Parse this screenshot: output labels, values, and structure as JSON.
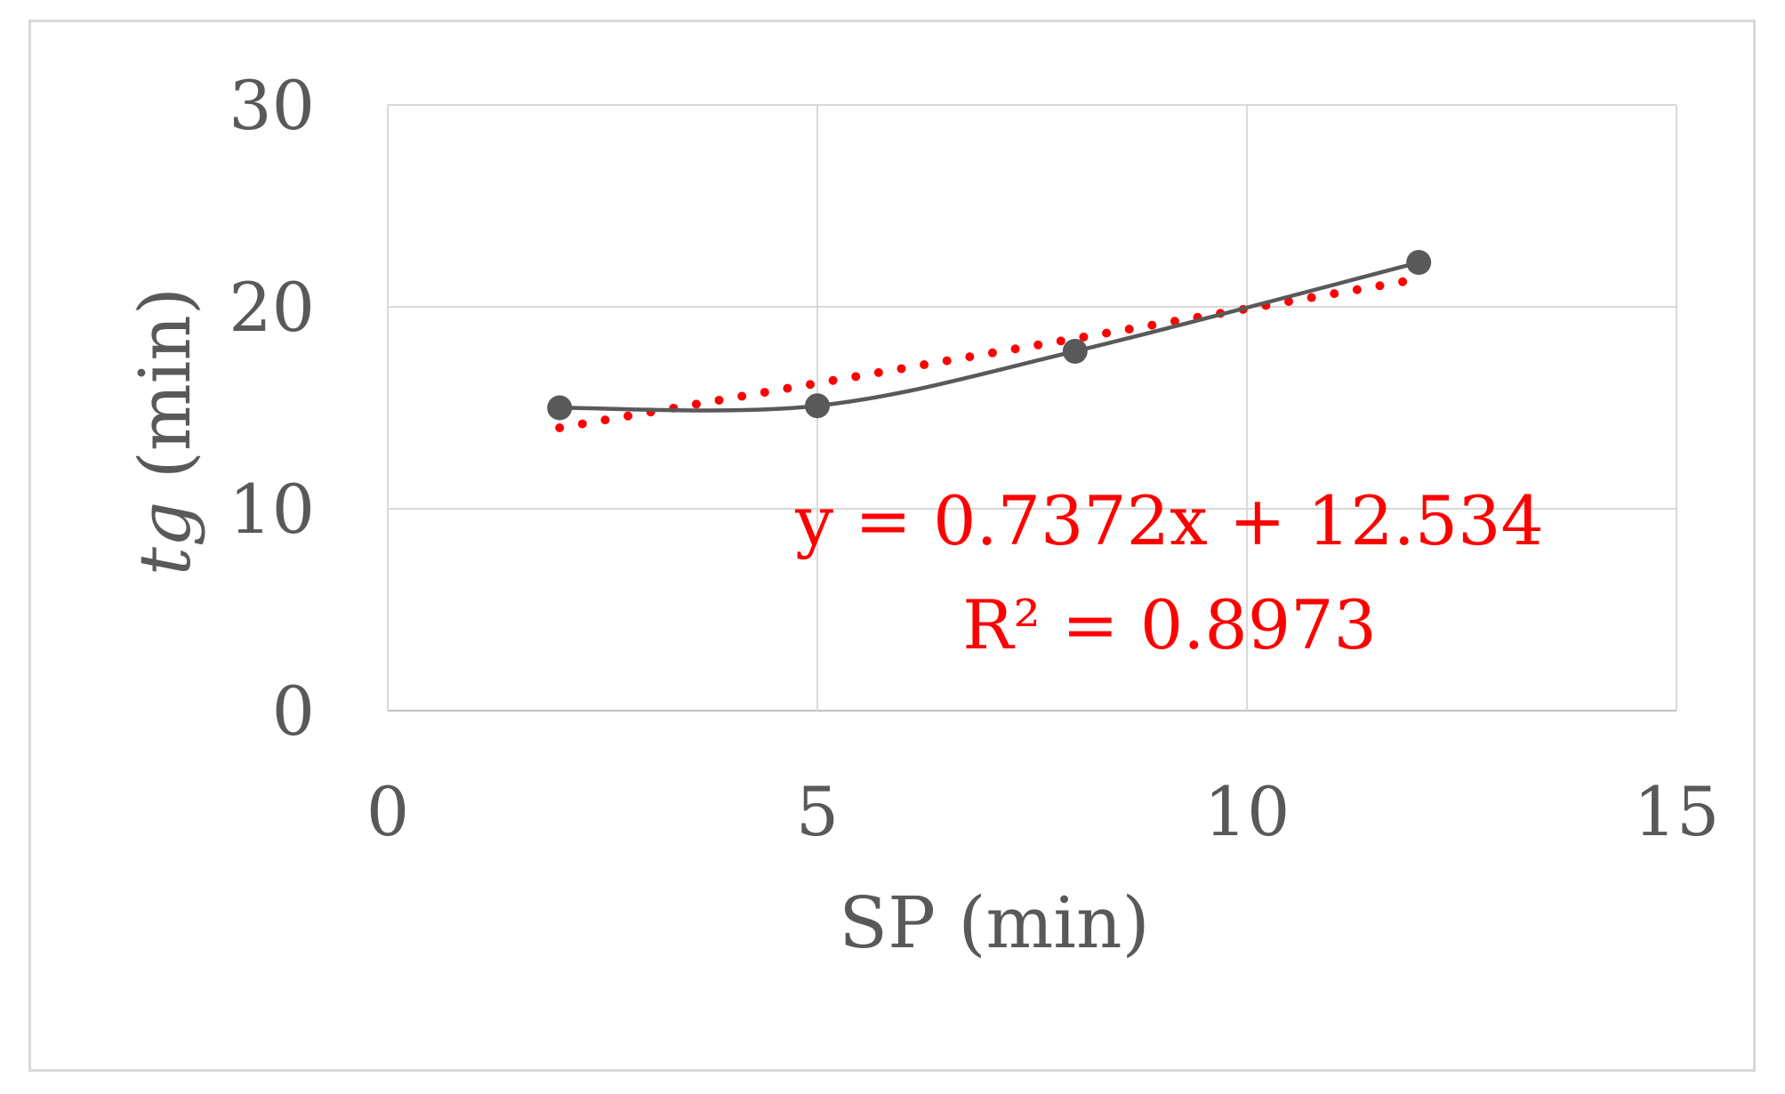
{
  "chart_data": {
    "type": "scatter",
    "xlabel": "SP (min)",
    "ylabel": "tg (min)",
    "ylabel_parts": {
      "italic": "tg",
      "rest": " (min)"
    },
    "xlim": [
      0,
      15
    ],
    "ylim": [
      0,
      30
    ],
    "x_ticks": [
      0,
      5,
      10,
      15
    ],
    "y_ticks": [
      0,
      10,
      20,
      30
    ],
    "grid": true,
    "series": [
      {
        "points": [
          {
            "x": 2,
            "y": 15.0
          },
          {
            "x": 5,
            "y": 15.1
          },
          {
            "x": 8,
            "y": 17.8
          },
          {
            "x": 12,
            "y": 22.2
          }
        ],
        "style": "smooth line with markers",
        "color": "#595959"
      }
    ],
    "trendline": {
      "type": "linear",
      "slope": 0.7372,
      "intercept": 12.534,
      "x_range": [
        2,
        12
      ],
      "color": "#ff0000",
      "style": "dotted"
    },
    "annotations": [
      {
        "text": "y = 0.7372x + 12.534"
      },
      {
        "text": "R² = 0.8973"
      }
    ]
  }
}
